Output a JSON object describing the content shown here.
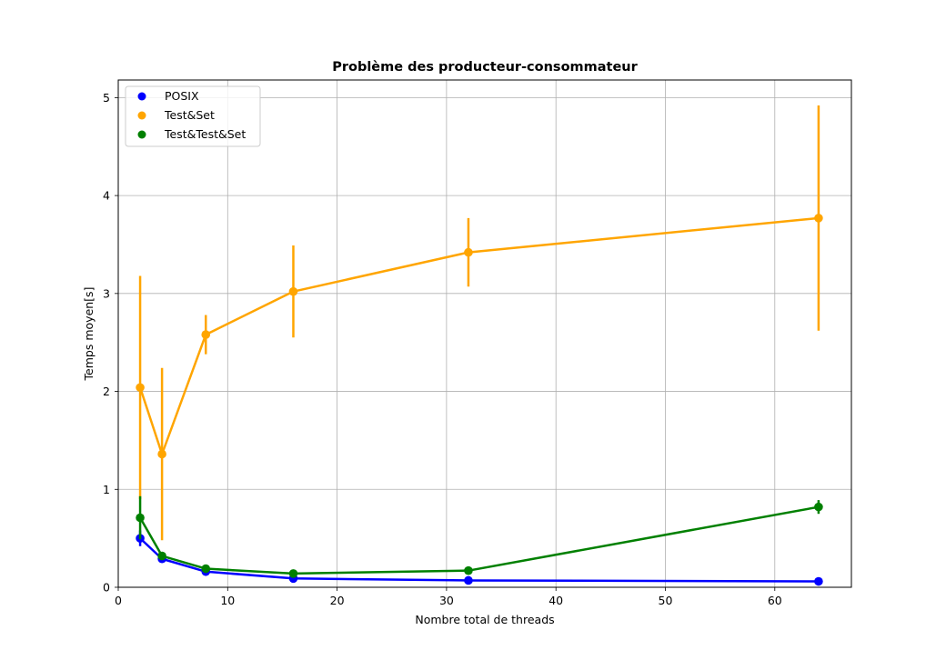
{
  "chart_data": {
    "type": "line",
    "title": "Problème des producteur-consommateur",
    "xlabel": "Nombre total de threads",
    "ylabel": "Temps moyen[s]",
    "xlim": [
      0,
      67
    ],
    "ylim": [
      0,
      5.18
    ],
    "xticks": [
      0,
      10,
      20,
      30,
      40,
      50,
      60
    ],
    "yticks": [
      0,
      1,
      2,
      3,
      4,
      5
    ],
    "grid": true,
    "legend_position": "top-left",
    "x": [
      2,
      4,
      8,
      16,
      32,
      64
    ],
    "series": [
      {
        "name": "POSIX",
        "color": "#0000ff",
        "values": [
          0.5,
          0.29,
          0.16,
          0.09,
          0.07,
          0.06
        ],
        "errors": [
          0.08,
          0.02,
          0.02,
          0.01,
          0.01,
          0.01
        ]
      },
      {
        "name": "Test&Set",
        "color": "#ffa500",
        "values": [
          2.04,
          1.36,
          2.58,
          3.02,
          3.42,
          3.77
        ],
        "errors": [
          1.14,
          0.88,
          0.2,
          0.47,
          0.35,
          1.15
        ]
      },
      {
        "name": "Test&Test&Set",
        "color": "#008000",
        "values": [
          0.71,
          0.32,
          0.19,
          0.14,
          0.17,
          0.82
        ],
        "errors": [
          0.22,
          0.03,
          0.02,
          0.02,
          0.02,
          0.07
        ]
      }
    ]
  }
}
